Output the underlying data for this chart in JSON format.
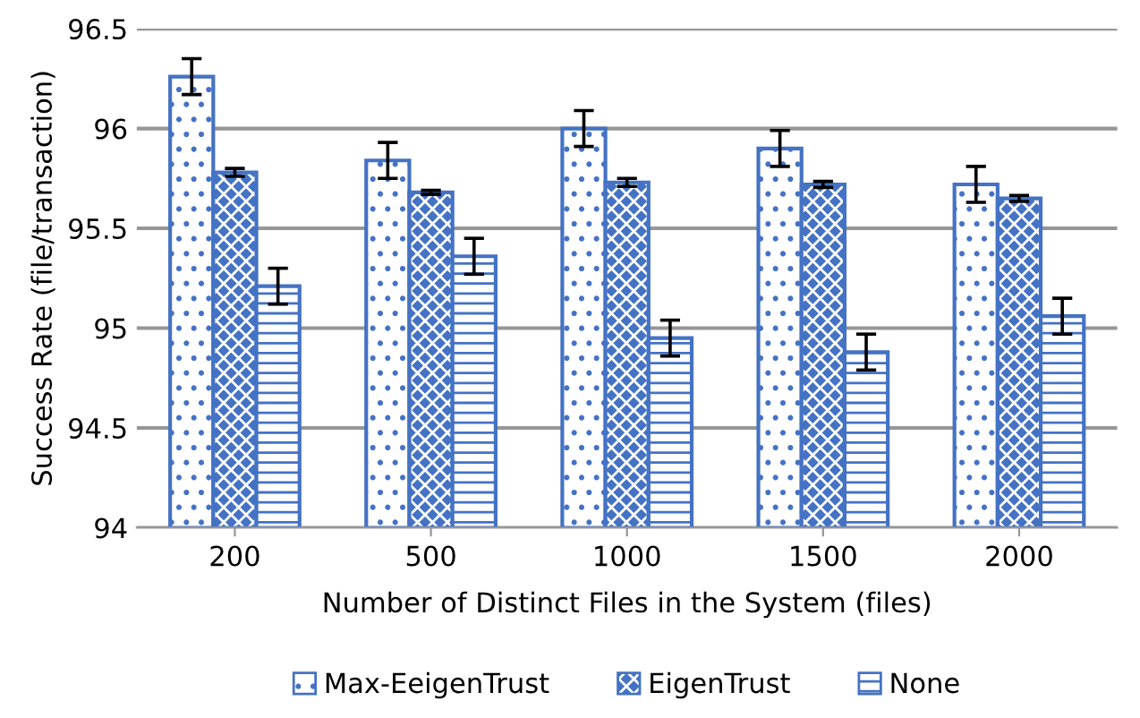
{
  "chart_data": {
    "type": "bar",
    "xlabel": "Number of Distinct Files in the System (files)",
    "ylabel": "Success Rate (file/transaction)",
    "categories": [
      "200",
      "500",
      "1000",
      "1500",
      "2000"
    ],
    "series": [
      {
        "name": "Max-EeigenTrust",
        "color": "#4472c4",
        "values": [
          96.26,
          95.84,
          96.0,
          95.9,
          95.72
        ],
        "errors": [
          0.09,
          0.09,
          0.09,
          0.09,
          0.09
        ]
      },
      {
        "name": "EigenTrust",
        "color": "#4472c4",
        "values": [
          95.78,
          95.68,
          95.73,
          95.72,
          95.65
        ],
        "errors": [
          0.02,
          0.01,
          0.02,
          0.015,
          0.015
        ]
      },
      {
        "name": "None",
        "color": "#4472c4",
        "values": [
          95.21,
          95.36,
          94.95,
          94.88,
          95.06
        ],
        "errors": [
          0.09,
          0.09,
          0.09,
          0.09,
          0.09
        ]
      }
    ],
    "ylim": [
      94,
      96.5
    ],
    "yticks": [
      94,
      94.5,
      95,
      95.5,
      96,
      96.5
    ],
    "grid": "y",
    "legend": "bottom"
  }
}
